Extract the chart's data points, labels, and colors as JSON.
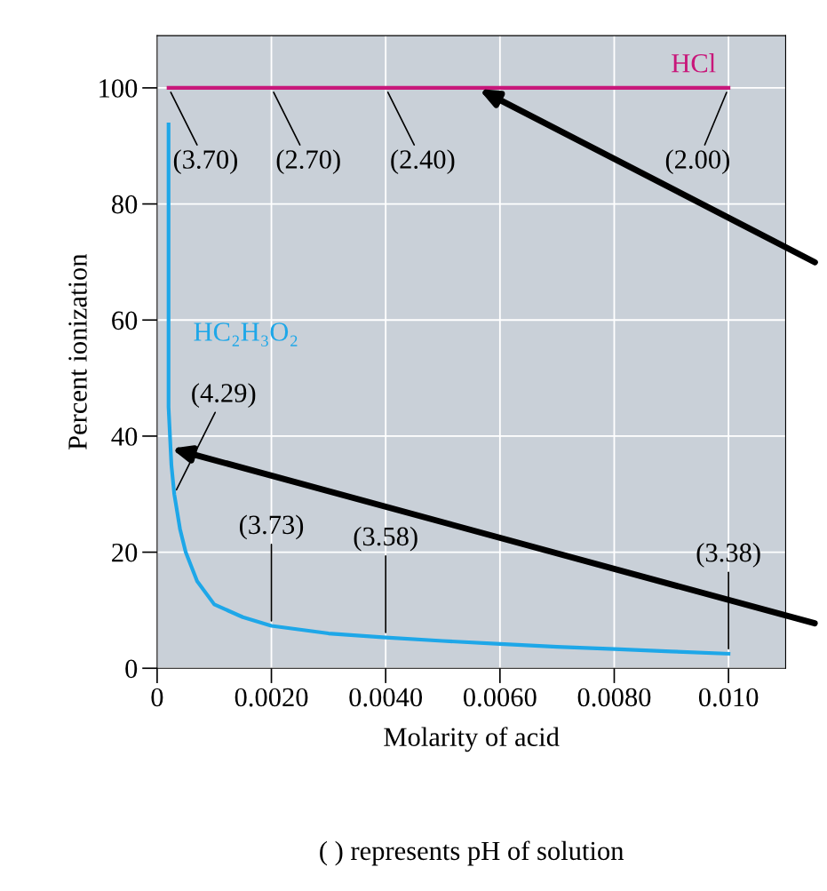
{
  "chart_data": {
    "type": "line",
    "xlabel": "Molarity of acid",
    "ylabel": "Percent ionization",
    "xlim": [
      0,
      0.011
    ],
    "ylim": [
      0,
      109
    ],
    "xticks": [
      0,
      {
        "value": 0.002,
        "label": "0.0020"
      },
      {
        "value": 0.004,
        "label": "0.0040"
      },
      {
        "value": 0.006,
        "label": "0.0060"
      },
      {
        "value": 0.008,
        "label": "0.0080"
      },
      {
        "value": 0.01,
        "label": "0.010"
      }
    ],
    "yticks": [
      0,
      20,
      40,
      60,
      80,
      100
    ],
    "grid": true,
    "marker": "none",
    "line_style": "solid",
    "series": [
      {
        "name": "HCl",
        "color": "#c8177a",
        "x": [
          0.0002,
          0.01
        ],
        "values": [
          100,
          100
        ]
      },
      {
        "name": "HC₂H₃O₂",
        "color": "#1ea7e8",
        "x": [
          0.0002,
          0.0002,
          0.00025,
          0.0003,
          0.0004,
          0.0005,
          0.0007,
          0.001,
          0.0015,
          0.002,
          0.003,
          0.004,
          0.005,
          0.006,
          0.007,
          0.008,
          0.009,
          0.01
        ],
        "values": [
          93.7,
          45,
          35,
          30,
          24,
          20,
          15,
          11,
          8.8,
          7.3,
          6,
          5.3,
          4.7,
          4.2,
          3.7,
          3.3,
          2.9,
          2.5
        ]
      }
    ],
    "annotations": [
      {
        "text": "(3.70)",
        "x": 0.0002,
        "y": 100
      },
      {
        "text": "(2.70)",
        "x": 0.002,
        "y": 100
      },
      {
        "text": "(2.40)",
        "x": 0.004,
        "y": 100
      },
      {
        "text": "(2.00)",
        "x": 0.01,
        "y": 100
      },
      {
        "text": "(4.29)",
        "x": 0.0003,
        "y": 30
      },
      {
        "text": "(3.73)",
        "x": 0.002,
        "y": 7.3
      },
      {
        "text": "(3.58)",
        "x": 0.004,
        "y": 5.3
      },
      {
        "text": "(3.38)",
        "x": 0.01,
        "y": 2.5
      },
      "( ) represents pH of solution"
    ]
  }
}
